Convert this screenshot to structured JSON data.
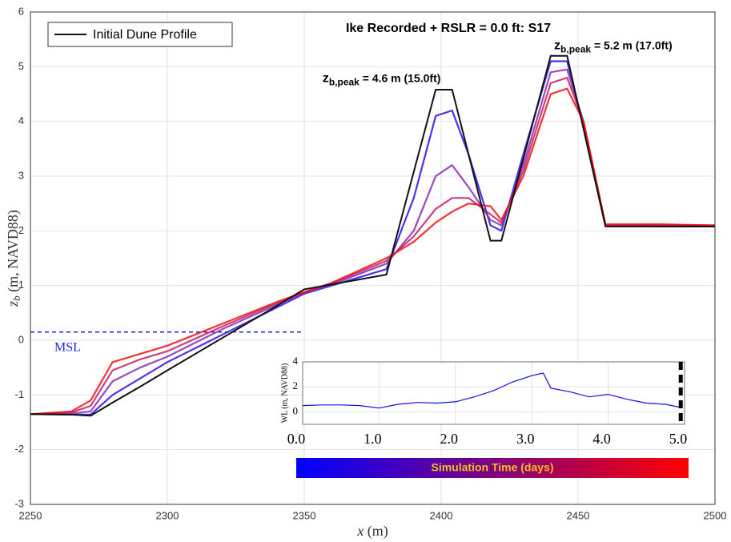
{
  "chart_data": [
    {
      "type": "line",
      "title": "Ike Recorded + RSLR = 0.0 ft: S17",
      "x_label": {
        "var": "x",
        "text": " (m)"
      },
      "y_label": {
        "var": "z",
        "sub": "b",
        "text": " (m, NAVD88)"
      },
      "x": [
        2250,
        2265,
        2272,
        2280,
        2290,
        2300,
        2320,
        2340,
        2350,
        2360,
        2380,
        2390,
        2398,
        2404,
        2410,
        2418,
        2422,
        2430,
        2440,
        2446,
        2452,
        2460,
        2480,
        2500
      ],
      "series": [
        {
          "color": "#2a10f0",
          "values": [
            -1.35,
            -1.36,
            -1.36,
            -1.0,
            -0.7,
            -0.4,
            0.1,
            0.6,
            0.85,
            1.0,
            1.3,
            2.6,
            4.1,
            4.2,
            3.4,
            2.1,
            2.0,
            3.4,
            5.1,
            5.1,
            3.9,
            2.1,
            2.08,
            2.08
          ]
        },
        {
          "color": "#8a2ab0",
          "values": [
            -1.35,
            -1.34,
            -1.3,
            -0.75,
            -0.5,
            -0.3,
            0.2,
            0.65,
            0.87,
            1.02,
            1.4,
            2.0,
            3.0,
            3.2,
            2.8,
            2.2,
            2.1,
            3.2,
            4.9,
            4.95,
            4.0,
            2.1,
            2.1,
            2.09
          ]
        },
        {
          "color": "#c0206a",
          "values": [
            -1.35,
            -1.32,
            -1.2,
            -0.55,
            -0.35,
            -0.2,
            0.25,
            0.68,
            0.88,
            1.04,
            1.45,
            1.9,
            2.4,
            2.6,
            2.6,
            2.3,
            2.15,
            3.1,
            4.7,
            4.8,
            4.0,
            2.1,
            2.11,
            2.1
          ]
        },
        {
          "color": "#f01010",
          "values": [
            -1.35,
            -1.3,
            -1.1,
            -0.4,
            -0.25,
            -0.1,
            0.3,
            0.7,
            0.88,
            1.05,
            1.5,
            1.8,
            2.15,
            2.35,
            2.5,
            2.45,
            2.2,
            3.0,
            4.5,
            4.6,
            4.0,
            2.12,
            2.12,
            2.1
          ]
        },
        {
          "name": "Initial Dune Profile",
          "color": "#111111",
          "values": [
            -1.35,
            -1.36,
            -1.38,
            -1.14,
            -0.85,
            -0.55,
            0.04,
            0.63,
            0.93,
            1.02,
            1.2,
            3.08,
            4.58,
            4.58,
            3.4,
            1.82,
            1.82,
            3.32,
            5.2,
            5.2,
            3.86,
            2.08,
            2.08,
            2.08
          ]
        }
      ],
      "msl": {
        "label": "MSL",
        "value": 0.15,
        "x_end": 2350,
        "color": "#2222dd"
      },
      "annotations": [
        {
          "base": "z",
          "sub": "b,peak",
          "text": " = 4.6 m (15.0ft)",
          "x": 2401,
          "y": 4.6
        },
        {
          "base": "z",
          "sub": "b,peak",
          "text": " = 5.2 m (17.0ft)",
          "x": 2443,
          "y": 5.2
        }
      ],
      "colorbar": {
        "label": "Simulation Time (days)",
        "colors": [
          "#0000ff",
          "#ff0000"
        ]
      },
      "xlim": [
        2250,
        2500
      ],
      "xticks": [
        2250,
        2300,
        2350,
        2400,
        2450,
        2500
      ],
      "ylim": [
        -3,
        6
      ],
      "yticks": [
        -3,
        -2,
        -1,
        0,
        1,
        2,
        3,
        4,
        5,
        6
      ],
      "grid": true,
      "legend": "upper left"
    },
    {
      "type": "line",
      "y_label": "WL (m, NAVD88)",
      "x": [
        0,
        0.25,
        0.5,
        0.75,
        1.0,
        1.25,
        1.5,
        1.75,
        2.0,
        2.25,
        2.5,
        2.75,
        3.0,
        3.15,
        3.25,
        3.5,
        3.75,
        4.0,
        4.25,
        4.5,
        4.75,
        4.95
      ],
      "series": [
        {
          "color": "#1010e0",
          "values": [
            0.5,
            0.55,
            0.55,
            0.5,
            0.3,
            0.6,
            0.75,
            0.7,
            0.8,
            1.2,
            1.7,
            2.4,
            2.9,
            3.1,
            1.9,
            1.6,
            1.2,
            1.4,
            1.0,
            0.7,
            0.6,
            0.35
          ]
        }
      ],
      "current_time": 4.95,
      "xlim": [
        0,
        5
      ],
      "xticks": [
        {
          "value": 0,
          "label": "0.0"
        },
        {
          "value": 1,
          "label": "1.0"
        },
        {
          "value": 2,
          "label": "2.0"
        },
        {
          "value": 3,
          "label": "3.0"
        },
        {
          "value": 4,
          "label": "4.0"
        },
        {
          "value": 5,
          "label": "5.0"
        }
      ],
      "ylim": [
        -1,
        4
      ],
      "yticks": [
        0,
        2,
        4
      ],
      "grid": true
    }
  ]
}
